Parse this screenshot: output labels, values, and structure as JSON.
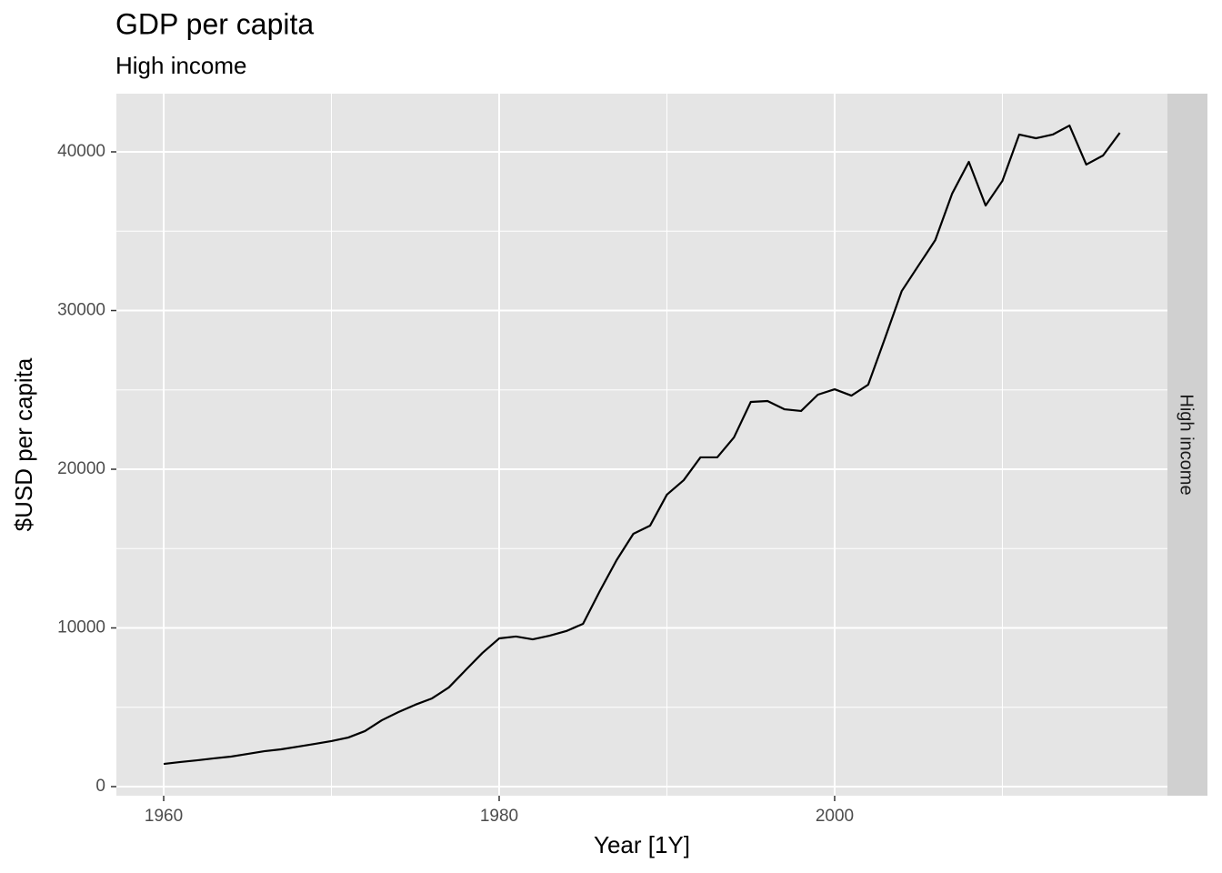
{
  "chart_data": {
    "type": "line",
    "title": "GDP per capita",
    "subtitle": "High income",
    "x_label": "Year [1Y]",
    "y_label": "$USD per capita",
    "facet_label": "High income",
    "x": [
      1960,
      1961,
      1962,
      1963,
      1964,
      1965,
      1966,
      1967,
      1968,
      1969,
      1970,
      1971,
      1972,
      1973,
      1974,
      1975,
      1976,
      1977,
      1978,
      1979,
      1980,
      1981,
      1982,
      1983,
      1984,
      1985,
      1986,
      1987,
      1988,
      1989,
      1990,
      1991,
      1992,
      1993,
      1994,
      1995,
      1996,
      1997,
      1998,
      1999,
      2000,
      2001,
      2002,
      2003,
      2004,
      2005,
      2006,
      2007,
      2008,
      2009,
      2010,
      2011,
      2012,
      2013,
      2014,
      2015,
      2016,
      2017
    ],
    "series": [
      {
        "name": "High income",
        "color": "#000000",
        "values": [
          1430,
          1550,
          1660,
          1780,
          1890,
          2060,
          2230,
          2350,
          2520,
          2690,
          2870,
          3090,
          3500,
          4180,
          4700,
          5160,
          5560,
          6250,
          7340,
          8420,
          9340,
          9460,
          9280,
          9510,
          9800,
          10260,
          12320,
          14270,
          15930,
          16450,
          18400,
          19310,
          20750,
          20750,
          22010,
          24240,
          24300,
          23780,
          23670,
          24700,
          25040,
          24640,
          25330,
          28250,
          31230,
          32840,
          34440,
          37360,
          39370,
          36620,
          38170,
          41090,
          40860,
          41090,
          41660,
          39200,
          39770,
          41200
        ]
      }
    ],
    "xlim": [
      1957.18,
      2019.84
    ],
    "ylim": [
      -573,
      43668
    ],
    "xticks": [
      1960,
      1980,
      2000
    ],
    "yticks": [
      0,
      10000,
      20000,
      30000,
      40000
    ],
    "xminor": [
      1970,
      1990,
      2010
    ],
    "yminor": [
      5000,
      15000,
      25000,
      35000
    ],
    "grid": true
  }
}
